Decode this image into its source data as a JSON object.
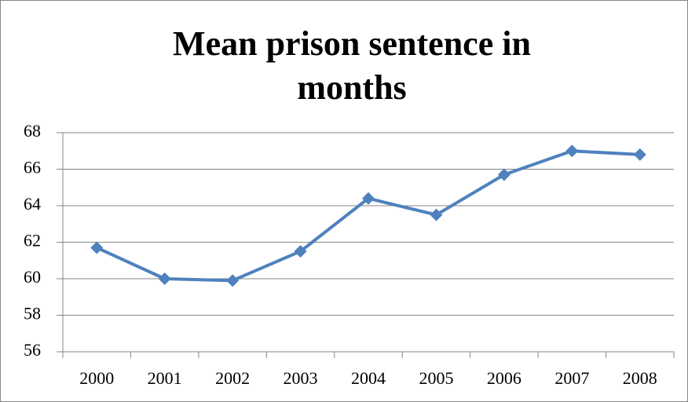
{
  "chart_data": {
    "type": "line",
    "title": "Mean prison sentence in months",
    "categories": [
      "2000",
      "2001",
      "2002",
      "2003",
      "2004",
      "2005",
      "2006",
      "2007",
      "2008"
    ],
    "values": [
      61.7,
      60.0,
      59.9,
      61.5,
      64.4,
      63.5,
      65.7,
      67.0,
      66.8
    ],
    "color": "#4f81bd",
    "ylim": [
      56,
      68
    ],
    "yticks": [
      56,
      58,
      60,
      62,
      64,
      66,
      68
    ],
    "grid": true
  }
}
